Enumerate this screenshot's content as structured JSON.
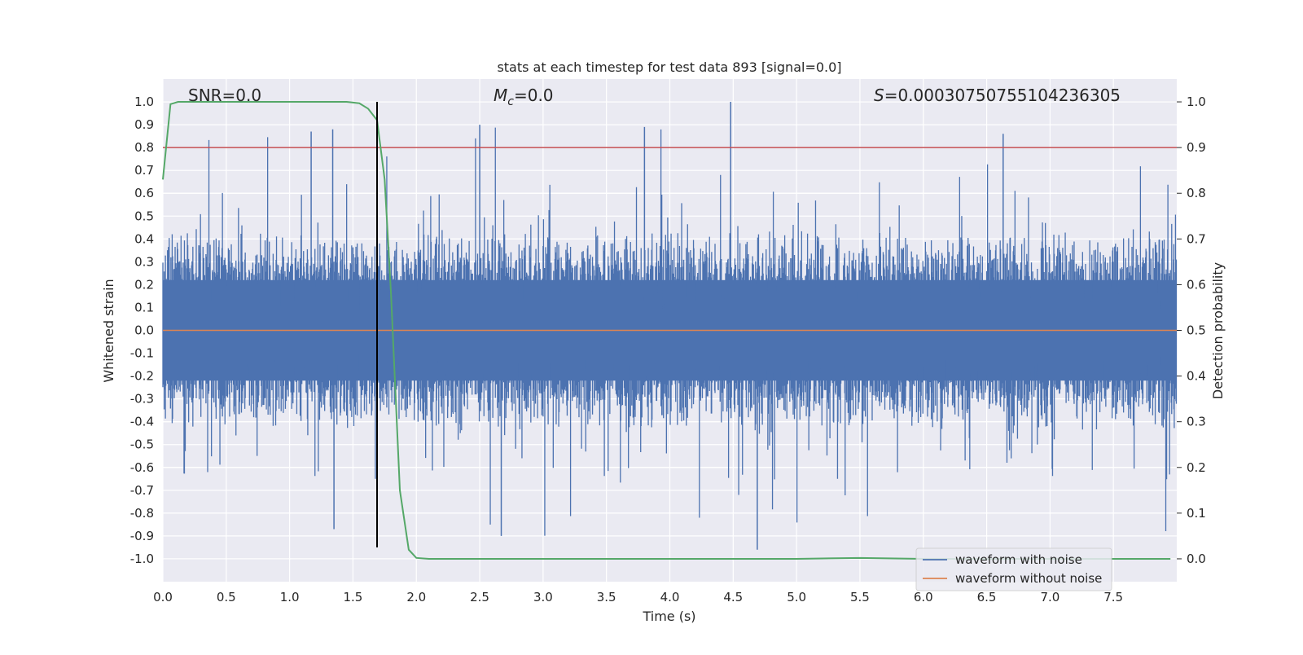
{
  "chart_data": {
    "type": "line",
    "title": "stats at each timestep for test data 893 [signal=0.0]",
    "xlabel": "Time (s)",
    "ylabel": "Whitened strain",
    "y2label": "Detection probability",
    "xlim": [
      0.0,
      8.0
    ],
    "ylim": [
      -1.1,
      1.1
    ],
    "y2lim": [
      -0.05,
      1.05
    ],
    "x_ticks": [
      0.0,
      0.5,
      1.0,
      1.5,
      2.0,
      2.5,
      3.0,
      3.5,
      4.0,
      4.5,
      5.0,
      5.5,
      6.0,
      6.5,
      7.0,
      7.5
    ],
    "x_tick_labels": [
      "0.0",
      "0.5",
      "1.0",
      "1.5",
      "2.0",
      "2.5",
      "3.0",
      "3.5",
      "4.0",
      "4.5",
      "5.0",
      "5.5",
      "6.0",
      "6.5",
      "7.0",
      "7.5"
    ],
    "y_ticks": [
      1.0,
      0.9,
      0.8,
      0.7,
      0.6,
      0.5,
      0.4,
      0.3,
      0.2,
      0.1,
      0.0,
      -0.1,
      -0.2,
      -0.3,
      -0.4,
      -0.5,
      -0.6,
      -0.7,
      -0.8,
      -0.9,
      -1.0
    ],
    "y_tick_labels": [
      "1.0",
      "0.9",
      "0.8",
      "0.7",
      "0.6",
      "0.5",
      "0.4",
      "0.3",
      "0.2",
      "0.1",
      "0.0",
      "-0.1",
      "-0.2",
      "-0.3",
      "-0.4",
      "-0.5",
      "-0.6",
      "-0.7",
      "-0.8",
      "-0.9",
      "-1.0"
    ],
    "y2_ticks": [
      1.0,
      0.9,
      0.8,
      0.7,
      0.6,
      0.5,
      0.4,
      0.3,
      0.2,
      0.1,
      0.0
    ],
    "y2_tick_labels": [
      "1.0",
      "0.9",
      "0.8",
      "0.7",
      "0.6",
      "0.5",
      "0.4",
      "0.3",
      "0.2",
      "0.1",
      "0.0"
    ],
    "annotations": {
      "snr": "SNR=0.0",
      "mc": "M_c=0.0",
      "s": "S=0.00030750755104236305"
    },
    "threshold": {
      "value": 0.9,
      "axis": "y2",
      "color": "#c44e52"
    },
    "marker_line": {
      "x": 1.69,
      "ymin": -0.95,
      "ymax": 1.0,
      "color": "#000000"
    },
    "series": [
      {
        "name": "waveform with noise",
        "color": "#4c72b0",
        "axis": "y",
        "style": "noise",
        "x_range": [
          0.0,
          8.0
        ],
        "envelope": [
          -0.4,
          0.4
        ],
        "extremes": [
          -0.96,
          1.0
        ]
      },
      {
        "name": "waveform without noise",
        "color": "#dd8452",
        "axis": "y",
        "style": "flat",
        "x": [
          0.0,
          8.0
        ],
        "values": [
          0.0,
          0.0
        ]
      },
      {
        "name": "detection probability",
        "color": "#55a868",
        "axis": "y2",
        "legend": false,
        "x": [
          0.0,
          0.06,
          0.12,
          0.25,
          0.5,
          1.0,
          1.45,
          1.55,
          1.62,
          1.69,
          1.75,
          1.8,
          1.87,
          1.94,
          2.0,
          2.1,
          3.0,
          5.0,
          5.5,
          6.0,
          7.0,
          7.95
        ],
        "values": [
          0.83,
          0.995,
          1.0,
          1.0,
          1.0,
          1.0,
          1.0,
          0.997,
          0.985,
          0.96,
          0.83,
          0.58,
          0.15,
          0.02,
          0.002,
          0.0,
          0.0,
          0.0,
          0.002,
          0.0,
          0.0,
          0.0
        ]
      }
    ],
    "legend": {
      "position": "lower right",
      "entries": [
        "waveform with noise",
        "waveform without noise"
      ]
    },
    "grid": true
  }
}
